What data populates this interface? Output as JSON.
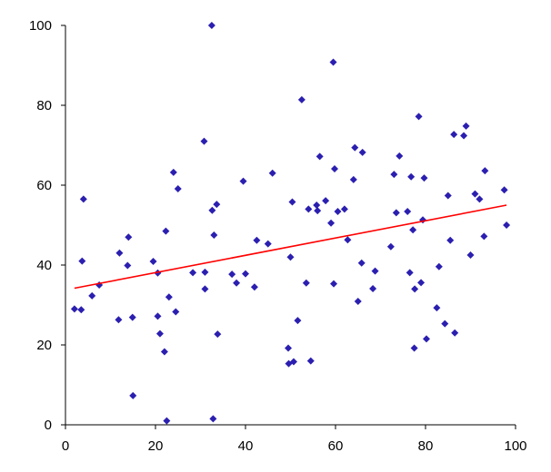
{
  "chart_data": {
    "type": "scatter",
    "title": "",
    "xlabel": "",
    "ylabel": "",
    "xlim": [
      0,
      100
    ],
    "ylim": [
      0,
      100
    ],
    "x_ticks": [
      0,
      20,
      40,
      60,
      80,
      100
    ],
    "y_ticks": [
      0,
      20,
      40,
      60,
      80,
      100
    ],
    "x_tick_labels": [
      "0",
      "20",
      "40",
      "60",
      "80",
      "100"
    ],
    "y_tick_labels": [
      "0",
      "20",
      "40",
      "60",
      "80",
      "100"
    ],
    "grid": false,
    "legend": "none",
    "marker": "diamond",
    "marker_color": "#2b1fb0",
    "trendline_color": "#ff0000",
    "trendline": {
      "x": [
        2,
        98
      ],
      "y": [
        34.2,
        55.0
      ]
    },
    "series": [
      {
        "points": [
          [
            2,
            29
          ],
          [
            3.5,
            28.8
          ],
          [
            4,
            56.5
          ],
          [
            3.7,
            41
          ],
          [
            5.9,
            32.3
          ],
          [
            7.5,
            35
          ],
          [
            12,
            43
          ],
          [
            11.8,
            26.3
          ],
          [
            13.8,
            39.9
          ],
          [
            14,
            47
          ],
          [
            14.9,
            26.9
          ],
          [
            15,
            7.3
          ],
          [
            19.5,
            40.9
          ],
          [
            20.5,
            38
          ],
          [
            20.5,
            27.2
          ],
          [
            21,
            22.8
          ],
          [
            22,
            18.3
          ],
          [
            22.3,
            48.5
          ],
          [
            22.5,
            1
          ],
          [
            23,
            32
          ],
          [
            24,
            63.2
          ],
          [
            24.5,
            28.3
          ],
          [
            25,
            59.1
          ],
          [
            28.3,
            38.1
          ],
          [
            30.8,
            71
          ],
          [
            31,
            38.2
          ],
          [
            31,
            34
          ],
          [
            32.5,
            100
          ],
          [
            32.6,
            53.7
          ],
          [
            32.8,
            1.5
          ],
          [
            33,
            47.5
          ],
          [
            33.6,
            55.2
          ],
          [
            33.8,
            22.7
          ],
          [
            37,
            37.7
          ],
          [
            38,
            35.5
          ],
          [
            39.5,
            61
          ],
          [
            40,
            37.8
          ],
          [
            42,
            34.5
          ],
          [
            42.5,
            46.2
          ],
          [
            45,
            45.3
          ],
          [
            46,
            63
          ],
          [
            49.5,
            19.2
          ],
          [
            49.6,
            15.3
          ],
          [
            50,
            42
          ],
          [
            50.4,
            55.8
          ],
          [
            50.7,
            15.8
          ],
          [
            51.6,
            26.1
          ],
          [
            52.5,
            81.4
          ],
          [
            53.5,
            35.5
          ],
          [
            54,
            54
          ],
          [
            54.5,
            16
          ],
          [
            55.8,
            55
          ],
          [
            56,
            53.6
          ],
          [
            56.5,
            67.2
          ],
          [
            57.8,
            56.1
          ],
          [
            59,
            50.5
          ],
          [
            59.5,
            90.8
          ],
          [
            59.6,
            35.3
          ],
          [
            59.8,
            64.1
          ],
          [
            60.5,
            53.4
          ],
          [
            62,
            54
          ],
          [
            62.7,
            46.3
          ],
          [
            64,
            61.4
          ],
          [
            64.3,
            69.4
          ],
          [
            65,
            30.9
          ],
          [
            65.8,
            40.5
          ],
          [
            66,
            68.2
          ],
          [
            68.3,
            34.1
          ],
          [
            68.8,
            38.5
          ],
          [
            72.3,
            44.6
          ],
          [
            73,
            62.7
          ],
          [
            73.5,
            53.1
          ],
          [
            74.2,
            67.3
          ],
          [
            76,
            53.4
          ],
          [
            76.5,
            38.1
          ],
          [
            76.8,
            62.1
          ],
          [
            77.2,
            48.8
          ],
          [
            77.5,
            19.2
          ],
          [
            77.6,
            34
          ],
          [
            78.5,
            77.2
          ],
          [
            79,
            35.6
          ],
          [
            79.4,
            51.3
          ],
          [
            79.7,
            61.8
          ],
          [
            80.2,
            21.5
          ],
          [
            82.5,
            29.3
          ],
          [
            83,
            39.6
          ],
          [
            84.3,
            25.3
          ],
          [
            85,
            57.4
          ],
          [
            85.5,
            46.2
          ],
          [
            86.3,
            72.7
          ],
          [
            86.5,
            23
          ],
          [
            88.5,
            72.4
          ],
          [
            89,
            74.8
          ],
          [
            90,
            42.5
          ],
          [
            91,
            57.8
          ],
          [
            92,
            56.5
          ],
          [
            93,
            47.2
          ],
          [
            93.2,
            63.6
          ],
          [
            97.5,
            58.8
          ],
          [
            98,
            50
          ]
        ]
      }
    ]
  }
}
